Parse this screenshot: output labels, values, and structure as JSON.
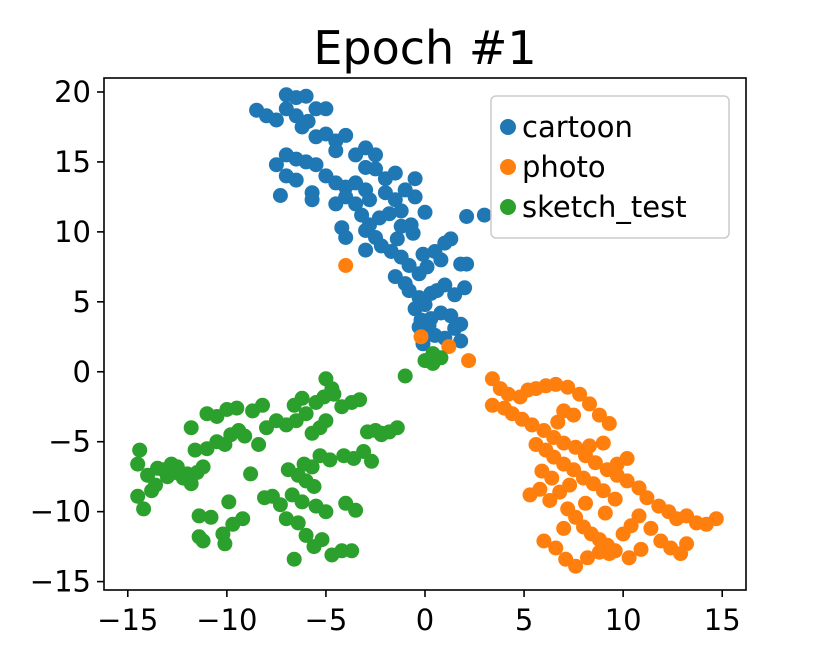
{
  "chart_data": {
    "type": "scatter",
    "title": "Epoch #1",
    "xlabel": "",
    "ylabel": "",
    "xlim": [
      -16.2,
      16.2
    ],
    "ylim": [
      -15.6,
      21.0
    ],
    "xticks": [
      -15,
      -10,
      -5,
      0,
      5,
      10,
      15
    ],
    "yticks": [
      -15,
      -10,
      -5,
      0,
      5,
      10,
      15,
      20
    ],
    "xtick_labels": [
      "−15",
      "−10",
      "−5",
      "0",
      "5",
      "10",
      "15"
    ],
    "ytick_labels": [
      "−15",
      "−10",
      "−5",
      "0",
      "5",
      "10",
      "15",
      "20"
    ],
    "legend_position": "top-right",
    "grid": false,
    "series": [
      {
        "name": "cartoon",
        "color": "#1f77b4",
        "points": [
          [
            -8.5,
            18.7
          ],
          [
            -8.0,
            18.3
          ],
          [
            -7.5,
            18.0
          ],
          [
            -7.0,
            19.8
          ],
          [
            -6.5,
            19.6
          ],
          [
            -6.0,
            19.7
          ],
          [
            -7.0,
            18.8
          ],
          [
            -6.5,
            18.3
          ],
          [
            -6.2,
            17.5
          ],
          [
            -5.9,
            17.9
          ],
          [
            -5.5,
            18.8
          ],
          [
            -5.0,
            18.8
          ],
          [
            -5.5,
            16.8
          ],
          [
            -5.0,
            17.0
          ],
          [
            -4.5,
            16.5
          ],
          [
            -4.0,
            16.9
          ],
          [
            -4.5,
            15.8
          ],
          [
            -3.5,
            15.5
          ],
          [
            -3.0,
            16.0
          ],
          [
            -2.5,
            15.5
          ],
          [
            -3.0,
            14.6
          ],
          [
            -2.5,
            14.5
          ],
          [
            -2.0,
            13.8
          ],
          [
            -1.5,
            14.2
          ],
          [
            -3.5,
            13.5
          ],
          [
            -3.0,
            13.0
          ],
          [
            -4.0,
            13.2
          ],
          [
            -4.5,
            13.5
          ],
          [
            -5.0,
            14.0
          ],
          [
            -5.5,
            14.8
          ],
          [
            -6.0,
            15.0
          ],
          [
            -6.5,
            15.2
          ],
          [
            -7.0,
            15.5
          ],
          [
            -7.5,
            14.8
          ],
          [
            -7.0,
            14.0
          ],
          [
            -6.5,
            13.7
          ],
          [
            -7.3,
            12.6
          ],
          [
            -5.7,
            12.8
          ],
          [
            -5.7,
            12.3
          ],
          [
            -4.5,
            12.0
          ],
          [
            -4.0,
            12.5
          ],
          [
            -3.5,
            12.0
          ],
          [
            -2.8,
            12.3
          ],
          [
            -2.0,
            12.8
          ],
          [
            -1.5,
            12.3
          ],
          [
            -3.2,
            11.2
          ],
          [
            -2.8,
            10.5
          ],
          [
            -2.3,
            11.0
          ],
          [
            -1.8,
            11.3
          ],
          [
            -1.2,
            11.5
          ],
          [
            -4.2,
            10.3
          ],
          [
            -4.0,
            9.6
          ],
          [
            -3.0,
            10.1
          ],
          [
            -2.5,
            9.6
          ],
          [
            -3.0,
            8.7
          ],
          [
            -2.2,
            9.0
          ],
          [
            -1.7,
            8.6
          ],
          [
            -1.4,
            9.5
          ],
          [
            -1.2,
            10.4
          ],
          [
            -0.7,
            10.5
          ],
          [
            0.0,
            11.4
          ],
          [
            -0.6,
            9.9
          ],
          [
            -1.2,
            8.2
          ],
          [
            -0.8,
            7.6
          ],
          [
            -0.3,
            7.0
          ],
          [
            0.1,
            7.5
          ],
          [
            0.8,
            8.0
          ],
          [
            -0.1,
            8.4
          ],
          [
            0.5,
            8.6
          ],
          [
            1.0,
            9.2
          ],
          [
            1.3,
            9.5
          ],
          [
            1.8,
            7.7
          ],
          [
            2.1,
            7.7
          ],
          [
            2.0,
            6.0
          ],
          [
            -1.5,
            6.8
          ],
          [
            -1.0,
            6.3
          ],
          [
            -0.8,
            5.8
          ],
          [
            -0.3,
            5.3
          ],
          [
            0.3,
            5.6
          ],
          [
            0.6,
            5.8
          ],
          [
            1.0,
            6.2
          ],
          [
            1.5,
            5.5
          ],
          [
            0.0,
            4.8
          ],
          [
            -0.5,
            4.5
          ],
          [
            -0.2,
            3.7
          ],
          [
            0.3,
            3.8
          ],
          [
            0.8,
            4.2
          ],
          [
            1.3,
            4.0
          ],
          [
            1.8,
            3.4
          ],
          [
            1.5,
            3.1
          ],
          [
            -0.3,
            3.2
          ],
          [
            0.2,
            3.3
          ],
          [
            0.5,
            2.6
          ],
          [
            1.0,
            2.4
          ],
          [
            -0.1,
            2.0
          ],
          [
            2.1,
            11.1
          ],
          [
            -0.5,
            12.5
          ],
          [
            -1.0,
            13.0
          ],
          [
            -0.5,
            13.8
          ],
          [
            1.8,
            2.2
          ],
          [
            3.0,
            11.2
          ]
        ]
      },
      {
        "name": "photo",
        "color": "#ff7f0e",
        "points": [
          [
            -4.0,
            7.6
          ],
          [
            -0.2,
            2.5
          ],
          [
            1.2,
            1.8
          ],
          [
            2.2,
            0.8
          ],
          [
            3.4,
            -0.5
          ],
          [
            3.8,
            -1.2
          ],
          [
            4.2,
            -1.6
          ],
          [
            4.8,
            -1.8
          ],
          [
            5.2,
            -1.3
          ],
          [
            5.6,
            -1.2
          ],
          [
            6.1,
            -1.0
          ],
          [
            6.6,
            -0.9
          ],
          [
            7.2,
            -1.1
          ],
          [
            7.8,
            -1.6
          ],
          [
            8.3,
            -2.3
          ],
          [
            8.8,
            -3.1
          ],
          [
            9.3,
            -3.7
          ],
          [
            3.4,
            -2.4
          ],
          [
            4.0,
            -2.6
          ],
          [
            4.4,
            -3.0
          ],
          [
            4.9,
            -3.4
          ],
          [
            5.4,
            -3.8
          ],
          [
            6.0,
            -4.2
          ],
          [
            6.5,
            -4.7
          ],
          [
            7.0,
            -5.1
          ],
          [
            7.6,
            -5.4
          ],
          [
            8.1,
            -6.0
          ],
          [
            8.6,
            -6.5
          ],
          [
            9.2,
            -7.0
          ],
          [
            9.7,
            -7.4
          ],
          [
            10.2,
            -7.8
          ],
          [
            10.8,
            -8.3
          ],
          [
            11.2,
            -9.0
          ],
          [
            11.8,
            -9.6
          ],
          [
            12.3,
            -10.0
          ],
          [
            12.7,
            -10.5
          ],
          [
            13.2,
            -10.3
          ],
          [
            13.7,
            -10.8
          ],
          [
            14.2,
            -10.9
          ],
          [
            14.7,
            -10.5
          ],
          [
            5.3,
            -8.8
          ],
          [
            5.8,
            -8.4
          ],
          [
            6.3,
            -9.2
          ],
          [
            6.8,
            -8.6
          ],
          [
            7.2,
            -9.8
          ],
          [
            7.6,
            -10.4
          ],
          [
            8.0,
            -11.1
          ],
          [
            8.4,
            -11.6
          ],
          [
            8.8,
            -12.0
          ],
          [
            9.2,
            -12.4
          ],
          [
            9.6,
            -12.8
          ],
          [
            10.0,
            -11.6
          ],
          [
            10.4,
            -11.0
          ],
          [
            10.8,
            -10.3
          ],
          [
            11.4,
            -11.2
          ],
          [
            11.9,
            -12.1
          ],
          [
            12.4,
            -12.6
          ],
          [
            12.9,
            -13.0
          ],
          [
            13.2,
            -12.3
          ],
          [
            6.0,
            -12.1
          ],
          [
            6.6,
            -12.6
          ],
          [
            7.1,
            -13.4
          ],
          [
            7.6,
            -13.9
          ],
          [
            8.2,
            -13.3
          ],
          [
            8.8,
            -12.9
          ],
          [
            9.3,
            -13.0
          ],
          [
            10.3,
            -13.3
          ],
          [
            10.9,
            -12.7
          ],
          [
            7.0,
            -2.8
          ],
          [
            7.5,
            -3.1
          ],
          [
            6.7,
            -3.6
          ],
          [
            5.6,
            -5.2
          ],
          [
            6.1,
            -5.6
          ],
          [
            6.5,
            -6.1
          ],
          [
            7.0,
            -6.6
          ],
          [
            7.5,
            -7.0
          ],
          [
            8.0,
            -7.6
          ],
          [
            8.5,
            -8.0
          ],
          [
            9.0,
            -8.5
          ],
          [
            9.6,
            -9.1
          ],
          [
            8.3,
            -5.3
          ],
          [
            9.0,
            -5.1
          ],
          [
            9.7,
            -6.6
          ],
          [
            10.2,
            -6.2
          ],
          [
            5.9,
            -7.1
          ],
          [
            6.4,
            -7.6
          ],
          [
            7.3,
            -8.1
          ],
          [
            7.0,
            -11.2
          ],
          [
            8.1,
            -9.4
          ],
          [
            9.1,
            -10.1
          ]
        ]
      },
      {
        "name": "sketch_test",
        "color": "#2ca02c",
        "points": [
          [
            -14.5,
            -6.6
          ],
          [
            -14.5,
            -8.9
          ],
          [
            -14.2,
            -9.8
          ],
          [
            -14.0,
            -7.4
          ],
          [
            -13.8,
            -8.5
          ],
          [
            -13.5,
            -6.9
          ],
          [
            -13.2,
            -7.0
          ],
          [
            -12.8,
            -6.6
          ],
          [
            -12.6,
            -7.2
          ],
          [
            -12.2,
            -7.6
          ],
          [
            -11.8,
            -8.0
          ],
          [
            -11.5,
            -7.2
          ],
          [
            -11.2,
            -6.8
          ],
          [
            -11.6,
            -5.6
          ],
          [
            -11.0,
            -5.5
          ],
          [
            -10.5,
            -5.0
          ],
          [
            -10.1,
            -5.2
          ],
          [
            -9.8,
            -4.5
          ],
          [
            -9.4,
            -4.2
          ],
          [
            -9.1,
            -4.6
          ],
          [
            -11.8,
            -4.0
          ],
          [
            -11.0,
            -3.0
          ],
          [
            -10.5,
            -3.2
          ],
          [
            -10.0,
            -2.7
          ],
          [
            -9.5,
            -2.6
          ],
          [
            -8.7,
            -2.8
          ],
          [
            -8.2,
            -2.4
          ],
          [
            -8.0,
            -4.0
          ],
          [
            -7.5,
            -3.5
          ],
          [
            -7.0,
            -3.8
          ],
          [
            -6.5,
            -3.5
          ],
          [
            -6.0,
            -3.0
          ],
          [
            -5.7,
            -4.4
          ],
          [
            -5.3,
            -4.0
          ],
          [
            -5.0,
            -3.5
          ],
          [
            -5.5,
            -2.2
          ],
          [
            -5.1,
            -1.8
          ],
          [
            -4.6,
            -1.6
          ],
          [
            -4.2,
            -2.5
          ],
          [
            -3.7,
            -2.2
          ],
          [
            -3.3,
            -2.0
          ],
          [
            -2.9,
            -4.3
          ],
          [
            -2.5,
            -4.2
          ],
          [
            -2.2,
            -4.5
          ],
          [
            -1.8,
            -4.3
          ],
          [
            -1.4,
            -4.0
          ],
          [
            -4.1,
            -6.0
          ],
          [
            -3.6,
            -6.2
          ],
          [
            -3.1,
            -5.7
          ],
          [
            -2.7,
            -6.4
          ],
          [
            -6.1,
            -6.6
          ],
          [
            -5.7,
            -6.8
          ],
          [
            -5.3,
            -6.0
          ],
          [
            -4.8,
            -6.3
          ],
          [
            -6.9,
            -7.0
          ],
          [
            -6.4,
            -7.4
          ],
          [
            -6.0,
            -7.8
          ],
          [
            -5.6,
            -8.2
          ],
          [
            -6.7,
            -8.8
          ],
          [
            -6.2,
            -9.3
          ],
          [
            -5.5,
            -9.6
          ],
          [
            -5.0,
            -10.0
          ],
          [
            -7.3,
            -9.5
          ],
          [
            -7.7,
            -8.9
          ],
          [
            -8.1,
            -9.0
          ],
          [
            -7.0,
            -10.5
          ],
          [
            -6.4,
            -10.8
          ],
          [
            -6.0,
            -11.7
          ],
          [
            -5.6,
            -12.5
          ],
          [
            -5.2,
            -12.0
          ],
          [
            -4.7,
            -13.1
          ],
          [
            -4.2,
            -12.8
          ],
          [
            -3.7,
            -12.8
          ],
          [
            -3.5,
            -9.9
          ],
          [
            -4.0,
            -9.4
          ],
          [
            -9.2,
            -10.5
          ],
          [
            -9.7,
            -10.9
          ],
          [
            -10.2,
            -11.6
          ],
          [
            -10.1,
            -12.3
          ],
          [
            -11.4,
            -10.3
          ],
          [
            -10.8,
            -10.4
          ],
          [
            -11.4,
            -11.8
          ],
          [
            -11.2,
            -12.1
          ],
          [
            -6.6,
            -13.4
          ],
          [
            -5.0,
            -0.5
          ],
          [
            -4.7,
            -1.2
          ],
          [
            -6.2,
            -1.9
          ],
          [
            -6.6,
            -2.4
          ],
          [
            -1.0,
            -0.3
          ],
          [
            0.0,
            0.8
          ],
          [
            0.4,
            0.6
          ],
          [
            0.8,
            1.0
          ],
          [
            0.4,
            1.3
          ],
          [
            -12.5,
            -6.8
          ],
          [
            -9.9,
            -9.3
          ],
          [
            -13.0,
            -7.5
          ],
          [
            -13.6,
            -8.1
          ],
          [
            -12.0,
            -7.3
          ],
          [
            -14.4,
            -5.6
          ],
          [
            -8.4,
            -5.2
          ],
          [
            -8.8,
            -7.3
          ],
          [
            -2.2,
            -4.4
          ]
        ]
      }
    ]
  }
}
